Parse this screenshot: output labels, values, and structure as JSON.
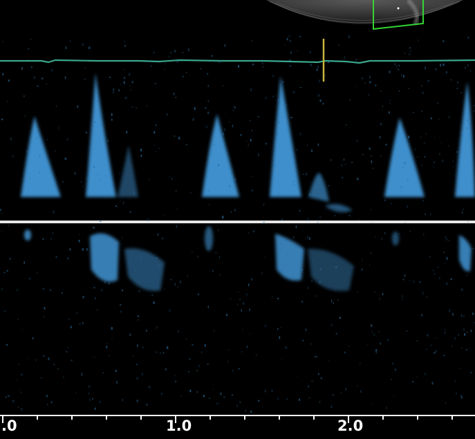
{
  "time_axis": {
    "labels": [
      ".0",
      "1.0",
      "2.0"
    ]
  },
  "colors": {
    "background": "#000000",
    "doppler": "#4aa8f0",
    "ecg_trace": "#3aa88e",
    "marker": "#c9b63a",
    "baseline": "#e6e6e6",
    "roi_box": "#33d633"
  }
}
